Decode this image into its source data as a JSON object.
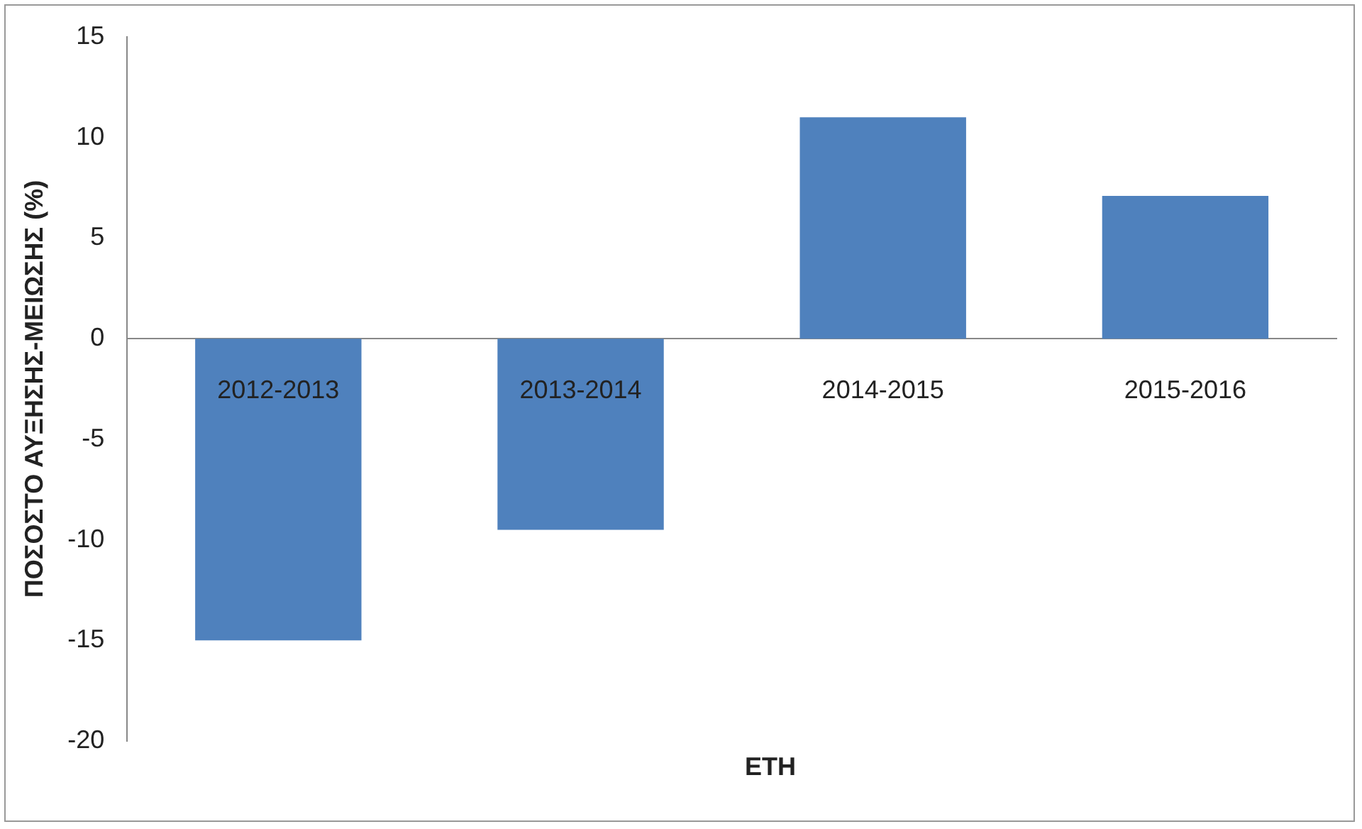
{
  "chart_data": {
    "type": "bar",
    "ylabel": "ΠΟΣΟΣΤΟ ΑΥΞΗΣΗΣ-ΜΕΙΩΣΗΣ (%)",
    "xlabel": "ΕΤΗ",
    "categories": [
      "2012-2013",
      "2013-2014",
      "2014-2015",
      "2015-2016"
    ],
    "values": [
      -15,
      -9.5,
      11,
      7.1
    ],
    "color": "#4f81bd",
    "ylim": [
      -20,
      15
    ],
    "yticks": [
      -20,
      -15,
      -10,
      -5,
      0,
      5,
      10,
      15
    ],
    "grid": false,
    "legend": false
  }
}
